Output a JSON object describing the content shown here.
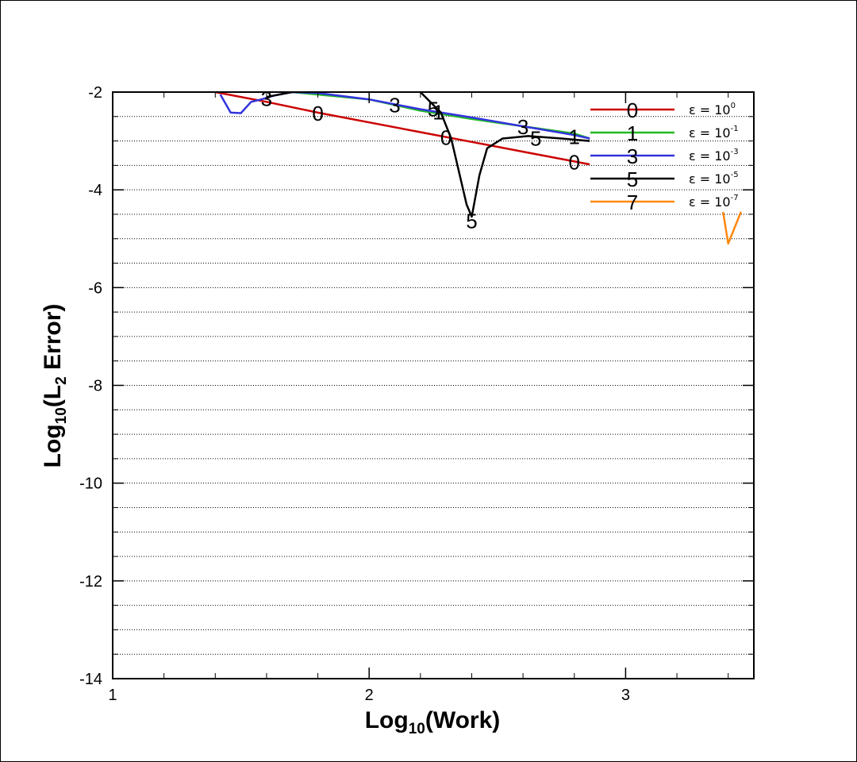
{
  "chart_data": {
    "type": "line",
    "xlabel": "Log10(Work)",
    "ylabel": "Log10(L2 Error)",
    "xlim": [
      1,
      3.5
    ],
    "ylim": [
      -14,
      -2
    ],
    "x_ticks": [
      "1",
      "2",
      "3"
    ],
    "y_ticks": [
      "-14",
      "-12",
      "-10",
      "-8",
      "-6",
      "-4",
      "-2"
    ],
    "grid": "horizontal dotted",
    "legend_placement": "top-right",
    "series": [
      {
        "name": "ε = 10^0",
        "legend_marker": "0",
        "color": "#cc0000",
        "x": [
          1.4,
          1.6,
          1.8,
          2.0,
          2.2,
          2.4,
          2.6,
          2.8,
          2.86
        ],
        "y": [
          -2.0,
          -2.2,
          -2.42,
          -2.62,
          -2.82,
          -3.02,
          -3.22,
          -3.42,
          -3.48
        ],
        "labels": [
          {
            "x": 1.8,
            "y": -2.42,
            "text": "0"
          },
          {
            "x": 2.3,
            "y": -2.92,
            "text": "0"
          },
          {
            "x": 2.8,
            "y": -3.42,
            "text": "0"
          }
        ]
      },
      {
        "name": "ε = 10^-1",
        "legend_marker": "1",
        "color": "#22bb22",
        "x": [
          1.7,
          2.0,
          2.2,
          2.4,
          2.6,
          2.8,
          2.86
        ],
        "y": [
          -2.0,
          -2.15,
          -2.38,
          -2.55,
          -2.7,
          -2.85,
          -2.95
        ],
        "labels": [
          {
            "x": 2.27,
            "y": -2.4,
            "text": "1"
          },
          {
            "x": 2.8,
            "y": -2.9,
            "text": "1"
          }
        ]
      },
      {
        "name": "ε = 10^-3",
        "legend_marker": "3",
        "color": "#3333dd",
        "x": [
          1.42,
          1.46,
          1.5,
          1.54,
          1.58,
          1.63,
          1.7,
          1.8,
          2.0,
          2.2,
          2.4,
          2.6,
          2.8,
          2.86
        ],
        "y": [
          -2.05,
          -2.42,
          -2.43,
          -2.2,
          -2.15,
          -2.07,
          -2.0,
          -2.02,
          -2.15,
          -2.35,
          -2.52,
          -2.7,
          -2.88,
          -2.95
        ],
        "labels": [
          {
            "x": 1.6,
            "y": -2.12,
            "text": "3"
          },
          {
            "x": 2.1,
            "y": -2.25,
            "text": "3"
          },
          {
            "x": 2.6,
            "y": -2.7,
            "text": "3"
          }
        ]
      },
      {
        "name": "ε = 10^-5",
        "legend_marker": "5",
        "color": "#000000",
        "x": [
          1.6,
          1.7,
          2.0,
          2.2,
          2.28,
          2.32,
          2.38,
          2.4,
          2.43,
          2.46,
          2.52,
          2.62,
          2.75,
          2.86
        ],
        "y": [
          -2.1,
          -2.0,
          -1.8,
          -2.0,
          -2.42,
          -2.95,
          -4.3,
          -4.55,
          -3.7,
          -3.15,
          -2.95,
          -2.9,
          -2.95,
          -3.0
        ],
        "labels": [
          {
            "x": 2.25,
            "y": -2.33,
            "text": "5"
          },
          {
            "x": 2.4,
            "y": -4.62,
            "text": "5"
          },
          {
            "x": 2.65,
            "y": -2.93,
            "text": "5"
          }
        ]
      },
      {
        "name": "ε = 10^-7",
        "legend_marker": "7",
        "color": "#ff8811",
        "x": [
          3.38,
          3.4,
          3.45
        ],
        "y": [
          -4.45,
          -5.1,
          -4.45
        ],
        "labels": []
      }
    ]
  }
}
